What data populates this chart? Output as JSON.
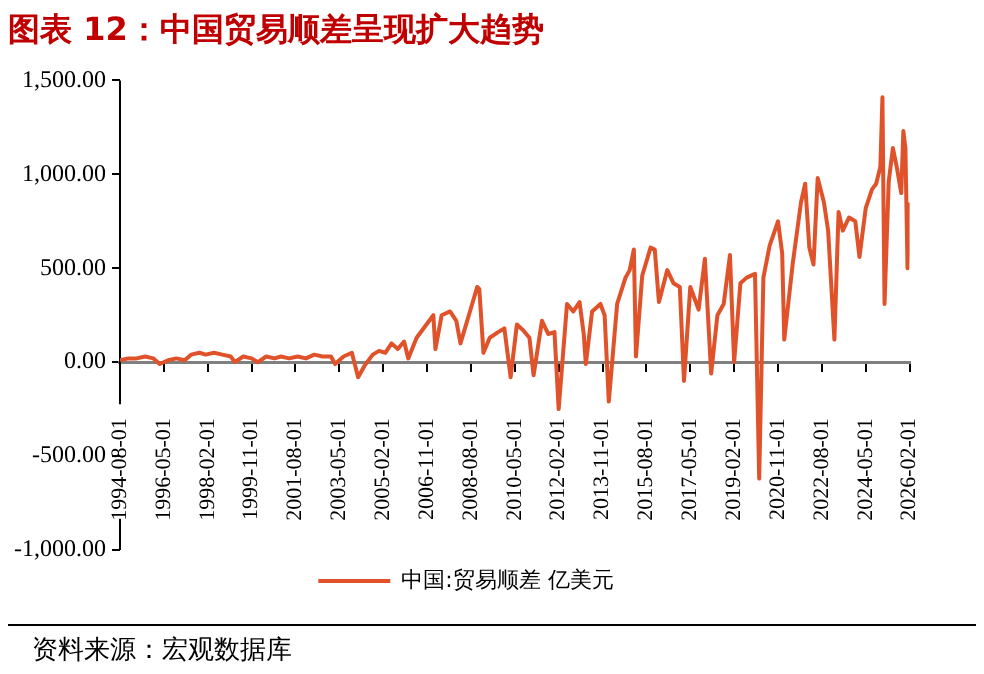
{
  "chart_data": {
    "type": "line",
    "title": "图表 12：中国贸易顺差呈现扩大趋势",
    "annotations": [
      "资料来源：宏观数据库"
    ],
    "x": [
      "1994-08",
      "1994-12",
      "1995-04",
      "1995-08",
      "1995-12",
      "1996-03",
      "1996-07",
      "1996-11",
      "1997-03",
      "1997-06",
      "1997-10",
      "1998-01",
      "1998-05",
      "1998-09",
      "1999-01",
      "1999-03",
      "1999-07",
      "1999-11",
      "2000-02",
      "2000-06",
      "2000-10",
      "2001-01",
      "2001-05",
      "2001-09",
      "2002-01",
      "2002-05",
      "2002-09",
      "2003-01",
      "2003-03",
      "2003-07",
      "2003-11",
      "2004-02",
      "2004-05",
      "2004-09",
      "2004-12",
      "2005-03",
      "2005-06",
      "2005-09",
      "2005-12",
      "2006-02",
      "2006-06",
      "2006-10",
      "2007-02",
      "2007-03",
      "2007-06",
      "2007-10",
      "2008-01",
      "2008-03",
      "2008-07",
      "2008-11",
      "2008-12",
      "2009-02",
      "2009-05",
      "2009-09",
      "2009-12",
      "2010-03",
      "2010-06",
      "2010-09",
      "2010-12",
      "2011-02",
      "2011-06",
      "2011-09",
      "2011-12",
      "2012-02",
      "2012-06",
      "2012-09",
      "2012-12",
      "2013-02",
      "2013-03",
      "2013-06",
      "2013-10",
      "2013-12",
      "2014-02",
      "2014-06",
      "2014-10",
      "2014-12",
      "2015-02",
      "2015-03",
      "2015-06",
      "2015-10",
      "2015-12",
      "2016-02",
      "2016-06",
      "2016-09",
      "2016-12",
      "2017-02",
      "2017-05",
      "2017-09",
      "2017-12",
      "2018-03",
      "2018-06",
      "2018-09",
      "2018-12",
      "2019-02",
      "2019-05",
      "2019-08",
      "2019-12",
      "2020-02",
      "2020-04",
      "2020-07",
      "2020-11",
      "2021-01",
      "2021-02",
      "2021-06",
      "2021-10",
      "2021-12",
      "2022-02",
      "2022-04",
      "2022-06",
      "2022-09",
      "2022-11",
      "2023-02",
      "2023-04",
      "2023-06",
      "2023-09",
      "2023-12",
      "2024-02",
      "2024-05",
      "2024-08",
      "2024-10",
      "2024-12",
      "2025-01",
      "2025-02",
      "2025-04",
      "2025-06",
      "2025-08",
      "2025-10",
      "2025-11",
      "2025-12",
      "2026-01",
      "2026-02"
    ],
    "series": [
      {
        "name": "中国:贸易顺差 亿美元",
        "color": "#e0522a",
        "values": [
          10,
          20,
          20,
          30,
          20,
          -10,
          10,
          20,
          10,
          40,
          50,
          40,
          50,
          40,
          30,
          0,
          30,
          20,
          0,
          30,
          20,
          30,
          20,
          30,
          20,
          40,
          30,
          30,
          -10,
          30,
          50,
          -80,
          -20,
          40,
          60,
          50,
          100,
          70,
          110,
          20,
          130,
          190,
          250,
          70,
          250,
          270,
          220,
          100,
          250,
          400,
          390,
          50,
          130,
          160,
          180,
          -80,
          200,
          170,
          130,
          -70,
          220,
          150,
          160,
          -250,
          310,
          270,
          320,
          150,
          -10,
          270,
          310,
          250,
          -210,
          310,
          450,
          490,
          600,
          30,
          460,
          610,
          600,
          320,
          490,
          420,
          400,
          -100,
          400,
          280,
          550,
          -60,
          250,
          310,
          570,
          0,
          420,
          450,
          470,
          -620,
          450,
          620,
          750,
          580,
          120,
          520,
          850,
          950,
          610,
          520,
          980,
          850,
          700,
          120,
          800,
          700,
          770,
          750,
          560,
          820,
          920,
          950,
          1040,
          1410,
          310,
          960,
          1140,
          1030,
          900,
          1230,
          1140,
          500,
          850
        ]
      }
    ],
    "xlim": [
      "1994-08",
      "2026-02"
    ],
    "xticks": [
      {
        "value": "1994-08",
        "label": "1994-08-01"
      },
      {
        "value": "1996-05",
        "label": "1996-05-01"
      },
      {
        "value": "1998-02",
        "label": "1998-02-01"
      },
      {
        "value": "1999-11",
        "label": "1999-11-01"
      },
      {
        "value": "2001-08",
        "label": "2001-08-01"
      },
      {
        "value": "2003-05",
        "label": "2003-05-01"
      },
      {
        "value": "2005-02",
        "label": "2005-02-01"
      },
      {
        "value": "2006-11",
        "label": "2006-11-01"
      },
      {
        "value": "2008-08",
        "label": "2008-08-01"
      },
      {
        "value": "2010-05",
        "label": "2010-05-01"
      },
      {
        "value": "2012-02",
        "label": "2012-02-01"
      },
      {
        "value": "2013-11",
        "label": "2013-11-01"
      },
      {
        "value": "2015-08",
        "label": "2015-08-01"
      },
      {
        "value": "2017-05",
        "label": "2017-05-01"
      },
      {
        "value": "2019-02",
        "label": "2019-02-01"
      },
      {
        "value": "2020-11",
        "label": "2020-11-01"
      },
      {
        "value": "2022-08",
        "label": "2022-08-01"
      },
      {
        "value": "2024-05",
        "label": "2024-05-01"
      },
      {
        "value": "2026-02",
        "label": "2026-02-01"
      }
    ],
    "ylim": [
      -1000,
      1500
    ],
    "yticks": [
      {
        "value": -1000,
        "label": "-1,000.00"
      },
      {
        "value": -500,
        "label": "-500.00"
      },
      {
        "value": 0,
        "label": "0.00"
      },
      {
        "value": 500,
        "label": "500.00"
      },
      {
        "value": 1000,
        "label": "1,000.00"
      },
      {
        "value": 1500,
        "label": "1,500.00"
      }
    ],
    "grid": false,
    "legend": "bottom",
    "marker": "none",
    "line_style": "solid"
  }
}
